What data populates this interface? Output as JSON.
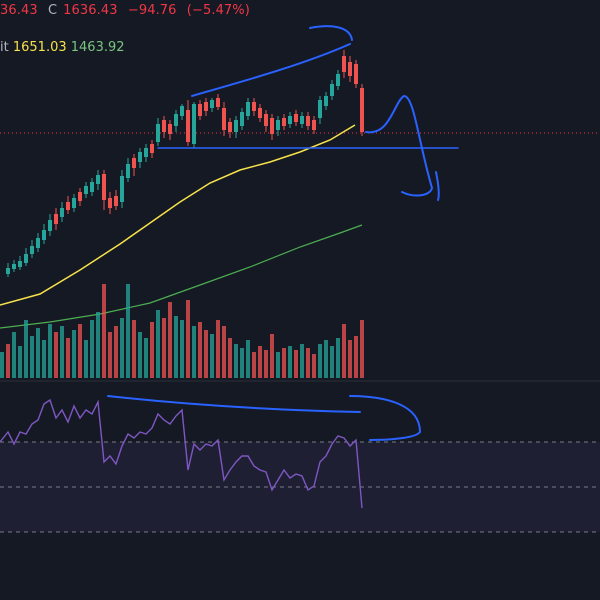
{
  "header": {
    "ohlc_prefix": "36.43",
    "close_label": "C",
    "close_value": "1636.43",
    "change": "−94.76",
    "change_pct": "(−5.47%)"
  },
  "moving_averages": {
    "partial_label": "it",
    "ma_fast": "1651.03",
    "ma_slow": "1463.92"
  },
  "colors": {
    "background": "#151924",
    "up": "#26a69a",
    "down": "#ef5350",
    "ma_fast": "#f7e24a",
    "ma_slow": "#4caf50",
    "rsi": "#7e57c2",
    "drawing": "#2962ff"
  },
  "chart_data": {
    "type": "candlestick",
    "title": "",
    "current_price_line": "dotted red",
    "support_line": "horizontal blue line",
    "rsi_levels": [
      70,
      50,
      30
    ],
    "notes": "Price has moved sharply down from a local high; annotation arrows indicate expected downward continuation."
  }
}
